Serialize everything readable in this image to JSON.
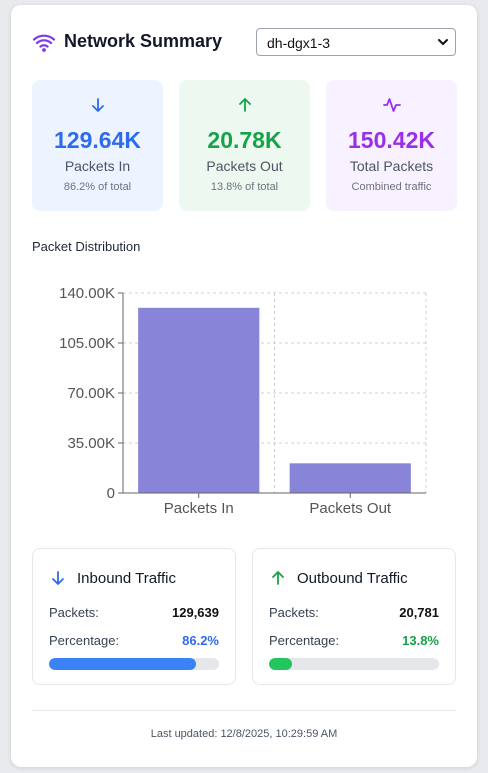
{
  "header": {
    "title": "Network Summary",
    "selected_host": "dh-dgx1-3"
  },
  "stats": [
    {
      "icon": "arrow-down-icon",
      "value": "129.64K",
      "label": "Packets In",
      "sub": "86.2% of total",
      "color": "#2f6bed"
    },
    {
      "icon": "arrow-up-icon",
      "value": "20.78K",
      "label": "Packets Out",
      "sub": "13.8% of total",
      "color": "#17a24a"
    },
    {
      "icon": "activity-icon",
      "value": "150.42K",
      "label": "Total Packets",
      "sub": "Combined traffic",
      "color": "#9b2fe8"
    }
  ],
  "distribution_title": "Packet Distribution",
  "chart_data": {
    "type": "bar",
    "categories": [
      "Packets In",
      "Packets Out"
    ],
    "values": [
      129639,
      20781
    ],
    "ylim": [
      0,
      140000
    ],
    "yticks": [
      0,
      35000,
      70000,
      105000,
      140000
    ],
    "ytick_labels": [
      "0",
      "35.00K",
      "70.00K",
      "105.00K",
      "140.00K"
    ],
    "bar_color": "#8884d8",
    "grid": true
  },
  "inbound": {
    "title": "Inbound Traffic",
    "packets_label": "Packets:",
    "packets": "129,639",
    "percentage_label": "Percentage:",
    "percentage": "86.2%",
    "fraction": 0.862
  },
  "outbound": {
    "title": "Outbound Traffic",
    "packets_label": "Packets:",
    "packets": "20,781",
    "percentage_label": "Percentage:",
    "percentage": "13.8%",
    "fraction": 0.138
  },
  "footer": "Last updated: 12/8/2025, 10:29:59 AM"
}
